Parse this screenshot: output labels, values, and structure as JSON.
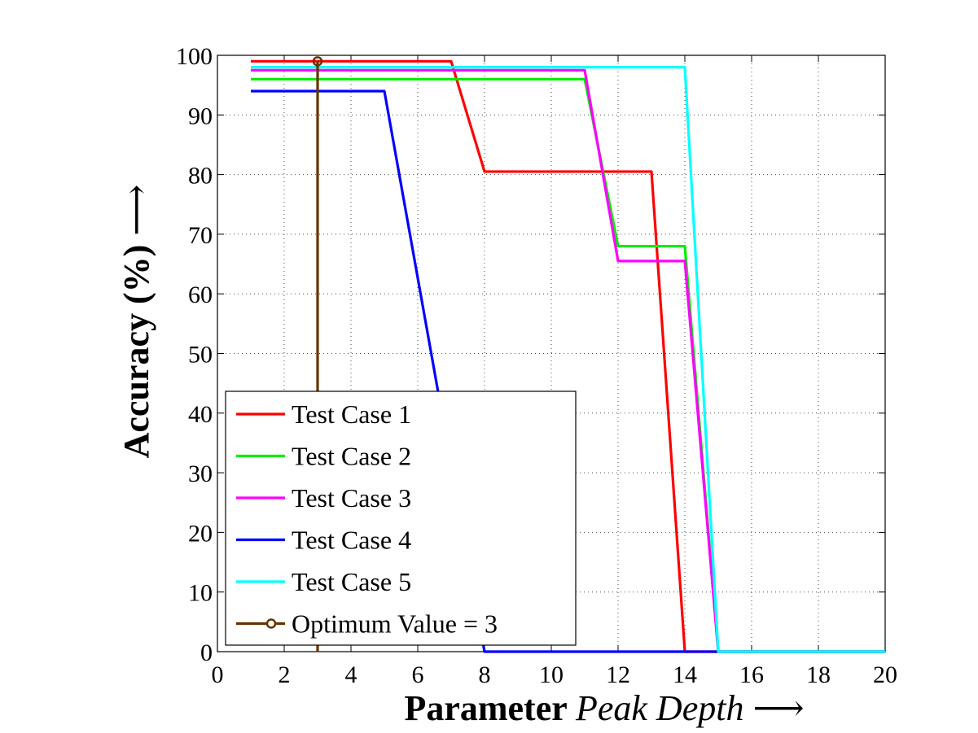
{
  "chart_data": {
    "type": "line",
    "xlabel": "Parameter",
    "xlabel_italic": "Peak Depth",
    "xlabel_arrow": "⟶",
    "ylabel": "Accuracy (%)",
    "ylabel_arrow": "⟶",
    "xlim": [
      0,
      20
    ],
    "ylim": [
      0,
      100
    ],
    "xticks": [
      0,
      2,
      4,
      6,
      8,
      10,
      12,
      14,
      16,
      18,
      20
    ],
    "yticks": [
      0,
      10,
      20,
      30,
      40,
      50,
      60,
      70,
      80,
      90,
      100
    ],
    "grid": true,
    "legend_position": "bottom-left",
    "series": [
      {
        "name": "Test Case 1",
        "color": "#ff0000",
        "x": [
          1,
          7,
          8,
          13,
          14,
          15,
          20
        ],
        "y": [
          99,
          99,
          80.5,
          80.5,
          0,
          0,
          0
        ]
      },
      {
        "name": "Test Case 2",
        "color": "#00ee00",
        "x": [
          1,
          11,
          12,
          14,
          15,
          20
        ],
        "y": [
          96,
          96,
          68,
          68,
          0,
          0
        ]
      },
      {
        "name": "Test Case 3",
        "color": "#ff00ff",
        "x": [
          1,
          11,
          12,
          14,
          15,
          20
        ],
        "y": [
          97.5,
          97.5,
          65.5,
          65.5,
          0,
          0
        ]
      },
      {
        "name": "Test Case 4",
        "color": "#0000ff",
        "x": [
          1,
          5,
          8,
          20
        ],
        "y": [
          94,
          94,
          0,
          0
        ]
      },
      {
        "name": "Test Case 5",
        "color": "#00ffff",
        "x": [
          1,
          14,
          15,
          20
        ],
        "y": [
          98,
          98,
          0,
          0
        ]
      }
    ],
    "optimum": {
      "name": "Optimum Value = 3",
      "color": "#663300",
      "x": 3,
      "y": 99
    }
  }
}
